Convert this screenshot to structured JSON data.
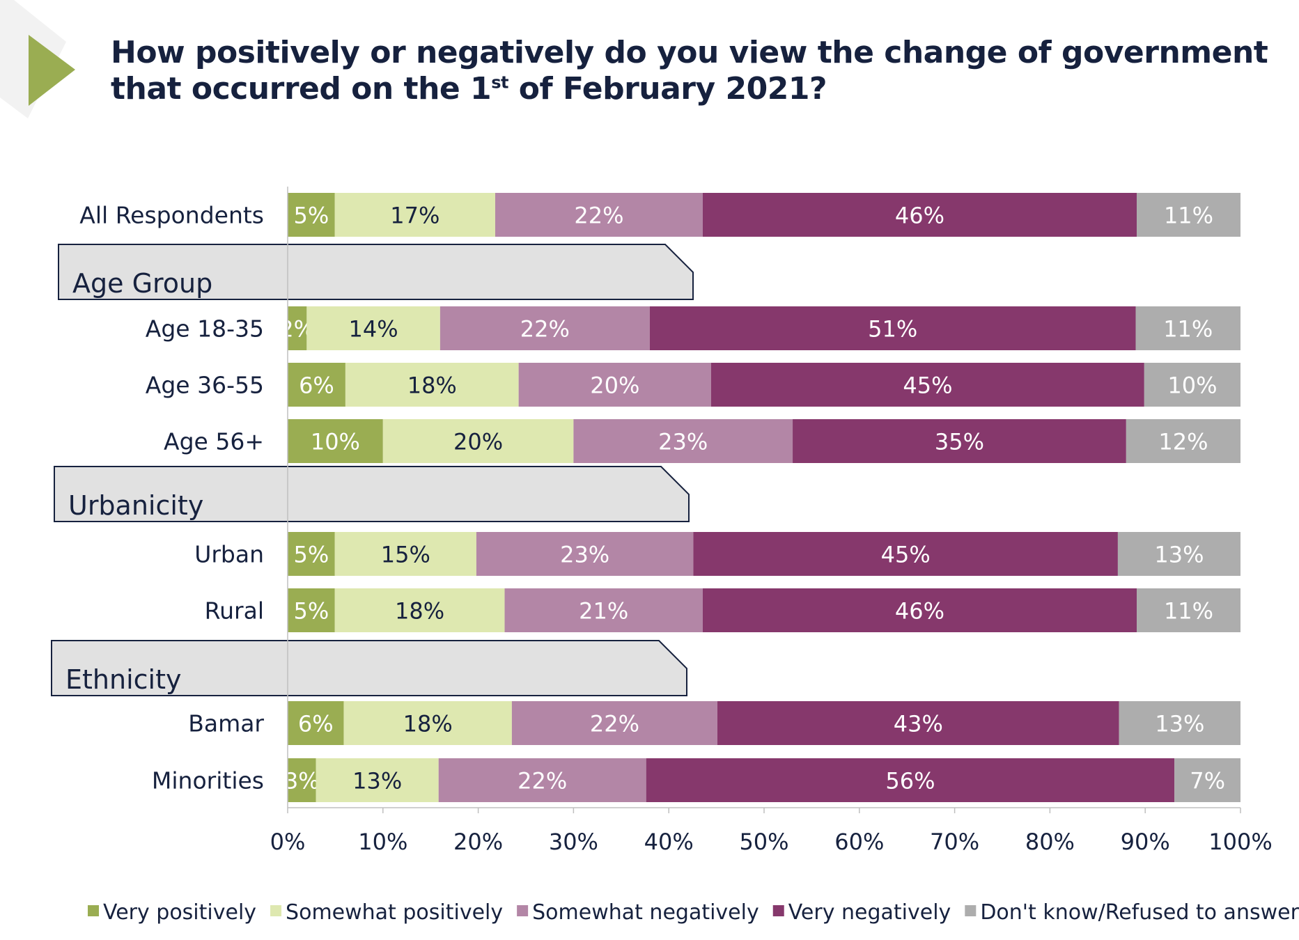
{
  "title": {
    "line1": "How positively or negatively do you view the change of government",
    "line2_pre": "that occurred on the 1",
    "line2_sup": "st",
    "line2_post": " of February 2021?"
  },
  "colors": {
    "accent_triangle": "#9aad52",
    "text": "#16213e",
    "group_box": "#e1e1e1"
  },
  "chart_data": {
    "type": "bar",
    "orientation": "horizontal",
    "stacked": true,
    "title": "How positively or negatively do you view the change of government that occurred on the 1st of February 2021?",
    "xlim": [
      0,
      100
    ],
    "x_ticks": [
      "0%",
      "10%",
      "20%",
      "30%",
      "40%",
      "50%",
      "60%",
      "70%",
      "80%",
      "90%",
      "100%"
    ],
    "legend_position": "bottom",
    "series": [
      {
        "name": "Very positively",
        "color": "#9aad52",
        "label_color": "#ffffff"
      },
      {
        "name": "Somewhat positively",
        "color": "#dee8b0",
        "label_color": "#16213e"
      },
      {
        "name": "Somewhat negatively",
        "color": "#b386a6",
        "label_color": "#ffffff"
      },
      {
        "name": "Very negatively",
        "color": "#86386c",
        "label_color": "#ffffff"
      },
      {
        "name": "Don't know/Refused to answer",
        "color": "#adadad",
        "label_color": "#ffffff"
      }
    ],
    "rows": [
      {
        "type": "bar",
        "label": "All Respondents",
        "values": [
          5,
          17,
          22,
          46,
          11
        ]
      },
      {
        "type": "group",
        "label": "Age Group"
      },
      {
        "type": "bar",
        "label": "Age 18-35",
        "values": [
          2,
          14,
          22,
          51,
          11
        ]
      },
      {
        "type": "bar",
        "label": "Age 36-55",
        "values": [
          6,
          18,
          20,
          45,
          10
        ]
      },
      {
        "type": "bar",
        "label": "Age 56+",
        "values": [
          10,
          20,
          23,
          35,
          12
        ]
      },
      {
        "type": "group",
        "label": "Urbanicity"
      },
      {
        "type": "bar",
        "label": "Urban",
        "values": [
          5,
          15,
          23,
          45,
          13
        ]
      },
      {
        "type": "bar",
        "label": "Rural",
        "values": [
          5,
          18,
          21,
          46,
          11
        ]
      },
      {
        "type": "group",
        "label": "Ethnicity"
      },
      {
        "type": "bar",
        "label": "Bamar",
        "values": [
          6,
          18,
          22,
          43,
          13
        ]
      },
      {
        "type": "bar",
        "label": "Minorities",
        "values": [
          3,
          13,
          22,
          56,
          7
        ]
      }
    ]
  }
}
